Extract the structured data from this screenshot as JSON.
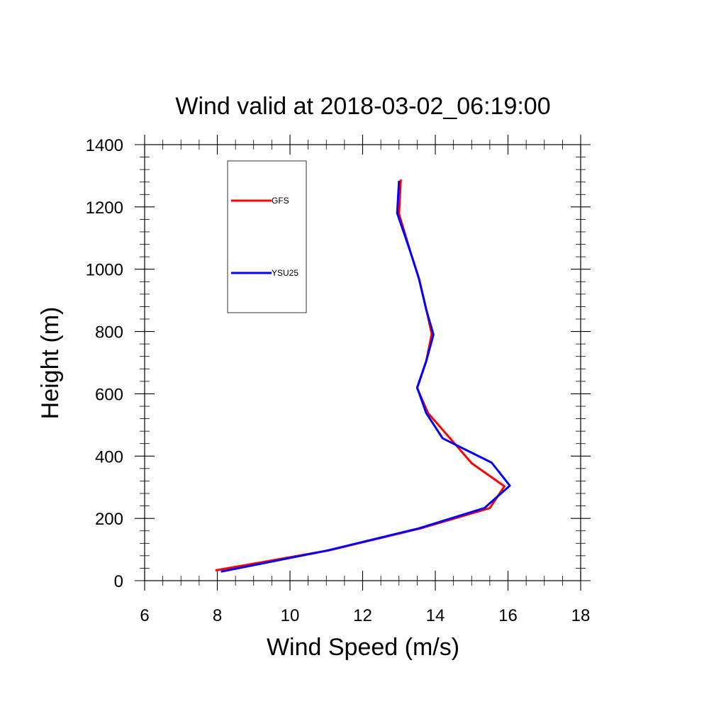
{
  "chart_data": {
    "type": "line",
    "title": "Wind valid at 2018-03-02_06:19:00",
    "xlabel": "Wind Speed (m/s)",
    "ylabel": "Height (m)",
    "xlim": [
      6,
      18
    ],
    "ylim": [
      0,
      1400
    ],
    "xticks": [
      6,
      8,
      10,
      12,
      14,
      16,
      18
    ],
    "yticks": [
      0,
      200,
      400,
      600,
      800,
      1000,
      1200,
      1400
    ],
    "grid": false,
    "legend_position": "top-left",
    "series": [
      {
        "name": "GFS",
        "color": "#ff0000",
        "points": [
          [
            7.95,
            33
          ],
          [
            11.1,
            98
          ],
          [
            13.6,
            168
          ],
          [
            15.5,
            233
          ],
          [
            15.9,
            303
          ],
          [
            15.0,
            377
          ],
          [
            14.6,
            431
          ],
          [
            13.8,
            538
          ],
          [
            13.5,
            618
          ],
          [
            13.75,
            705
          ],
          [
            13.9,
            792
          ],
          [
            13.75,
            872
          ],
          [
            13.55,
            970
          ],
          [
            13.3,
            1061
          ],
          [
            13.0,
            1178
          ],
          [
            13.05,
            1288
          ]
        ]
      },
      {
        "name": "YSU25",
        "color": "#0000ff",
        "points": [
          [
            8.1,
            29
          ],
          [
            11.0,
            96
          ],
          [
            13.55,
            168
          ],
          [
            15.35,
            233
          ],
          [
            16.05,
            305
          ],
          [
            15.55,
            379
          ],
          [
            14.2,
            457
          ],
          [
            13.75,
            538
          ],
          [
            13.5,
            620
          ],
          [
            13.75,
            705
          ],
          [
            13.95,
            790
          ],
          [
            13.75,
            870
          ],
          [
            13.55,
            970
          ],
          [
            13.3,
            1061
          ],
          [
            12.95,
            1180
          ],
          [
            13.0,
            1284
          ]
        ]
      }
    ]
  }
}
